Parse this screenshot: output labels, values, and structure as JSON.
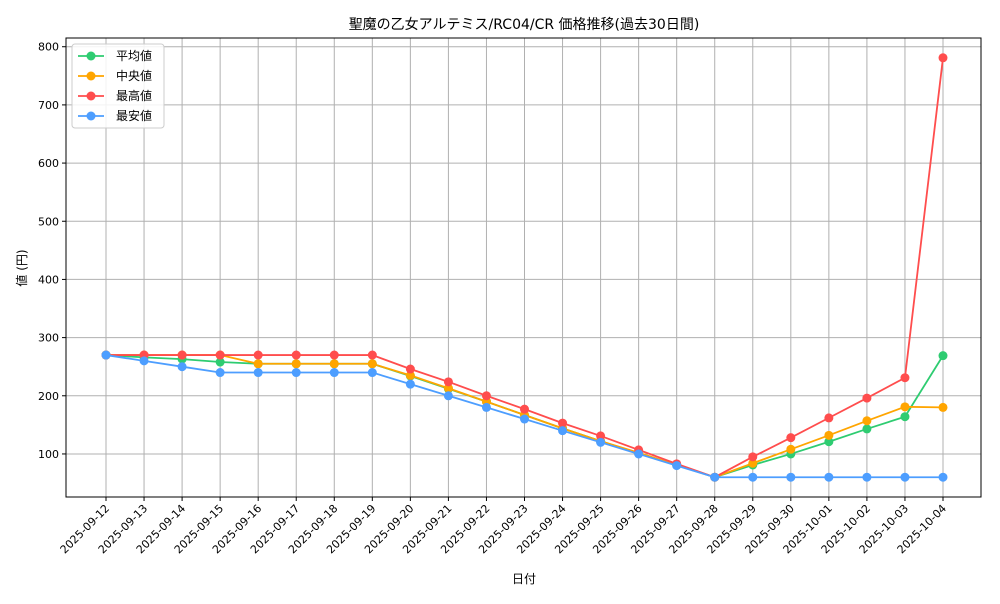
{
  "chart_data": {
    "type": "line",
    "title": "聖魔の乙女アルテミス/RC04/CR 価格推移(過去30日間)",
    "xlabel": "日付",
    "ylabel": "値 (円)",
    "ylim": [
      26,
      815
    ],
    "yticks": [
      100,
      200,
      300,
      400,
      500,
      600,
      700,
      800
    ],
    "grid": true,
    "legend_position": "top-left",
    "x": [
      "2025-09-12",
      "2025-09-13",
      "2025-09-14",
      "2025-09-15",
      "2025-09-16",
      "2025-09-17",
      "2025-09-18",
      "2025-09-19",
      "2025-09-20",
      "2025-09-21",
      "2025-09-22",
      "2025-09-23",
      "2025-09-24",
      "2025-09-25",
      "2025-09-26",
      "2025-09-27",
      "2025-09-28",
      "2025-09-29",
      "2025-09-30",
      "2025-10-01",
      "2025-10-02",
      "2025-10-03",
      "2025-10-04"
    ],
    "series": [
      {
        "name": "平均値",
        "color": "#2ecc71",
        "values": [
          270,
          266,
          263,
          258,
          255,
          255,
          255,
          255,
          234,
          212,
          190,
          167,
          144,
          122,
          101,
          81,
          60,
          81,
          100,
          121,
          143,
          164,
          269
        ]
      },
      {
        "name": "中央値",
        "color": "#ffa500",
        "values": [
          270,
          270,
          270,
          270,
          255,
          255,
          255,
          255,
          235,
          213,
          190,
          167,
          144,
          122,
          102,
          81,
          60,
          84,
          108,
          132,
          157,
          181,
          180
        ]
      },
      {
        "name": "最高値",
        "color": "#ff4d4d",
        "values": [
          270,
          270,
          270,
          270,
          270,
          270,
          270,
          270,
          246,
          224,
          200,
          177,
          153,
          131,
          107,
          83,
          60,
          95,
          128,
          162,
          196,
          231,
          781
        ]
      },
      {
        "name": "最安値",
        "color": "#4d9eff",
        "values": [
          270,
          260,
          250,
          240,
          240,
          240,
          240,
          240,
          220,
          200,
          180,
          160,
          140,
          120,
          100,
          80,
          60,
          60,
          60,
          60,
          60,
          60,
          60
        ]
      }
    ]
  }
}
